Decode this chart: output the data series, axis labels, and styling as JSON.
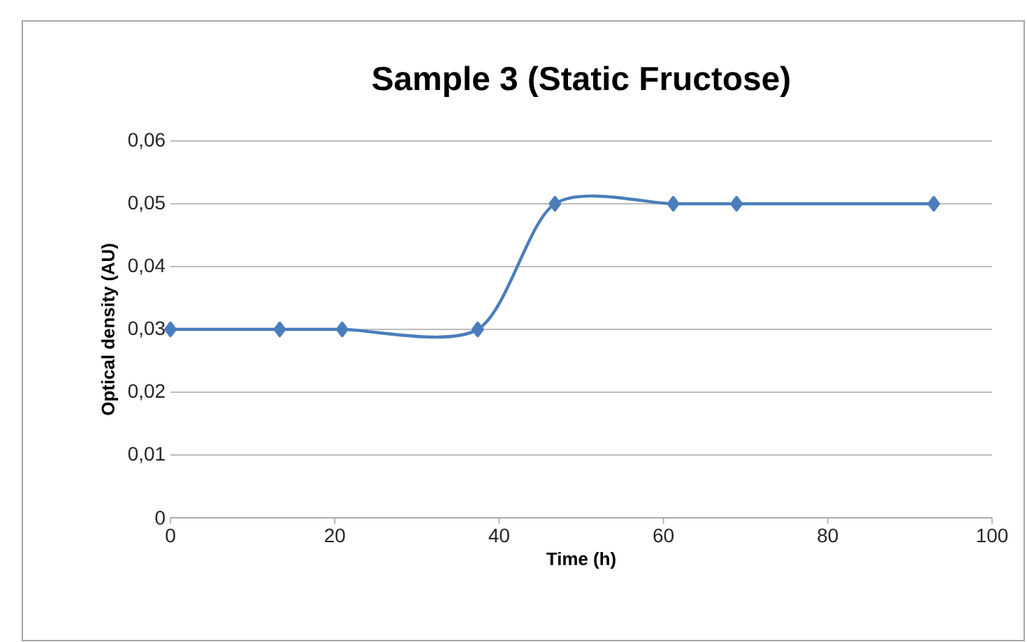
{
  "chart_data": {
    "type": "line",
    "title": "Sample 3 (Static Fructose)",
    "xlabel": "Time (h)",
    "ylabel": "Optical density (AU)",
    "x": [
      0,
      13.3,
      20.9,
      37.4,
      46.8,
      61.2,
      68.9,
      92.9
    ],
    "values": [
      0.03,
      0.03,
      0.03,
      0.03,
      0.05,
      0.05,
      0.05,
      0.05
    ],
    "color": "#4a7ebb",
    "marker": "diamond",
    "grid": "y",
    "xlim": [
      0,
      100
    ],
    "xticks": [
      0,
      20,
      40,
      60,
      80,
      100
    ],
    "ylim": [
      0,
      0.06
    ],
    "yticks": [
      0,
      {
        "value": 0.01,
        "label": "0,01"
      },
      {
        "value": 0.02,
        "label": "0,02"
      },
      {
        "value": 0.03,
        "label": "0,03"
      },
      {
        "value": 0.04,
        "label": "0,04"
      },
      {
        "value": 0.05,
        "label": "0,05"
      },
      {
        "value": 0.06,
        "label": "0,06"
      }
    ]
  }
}
